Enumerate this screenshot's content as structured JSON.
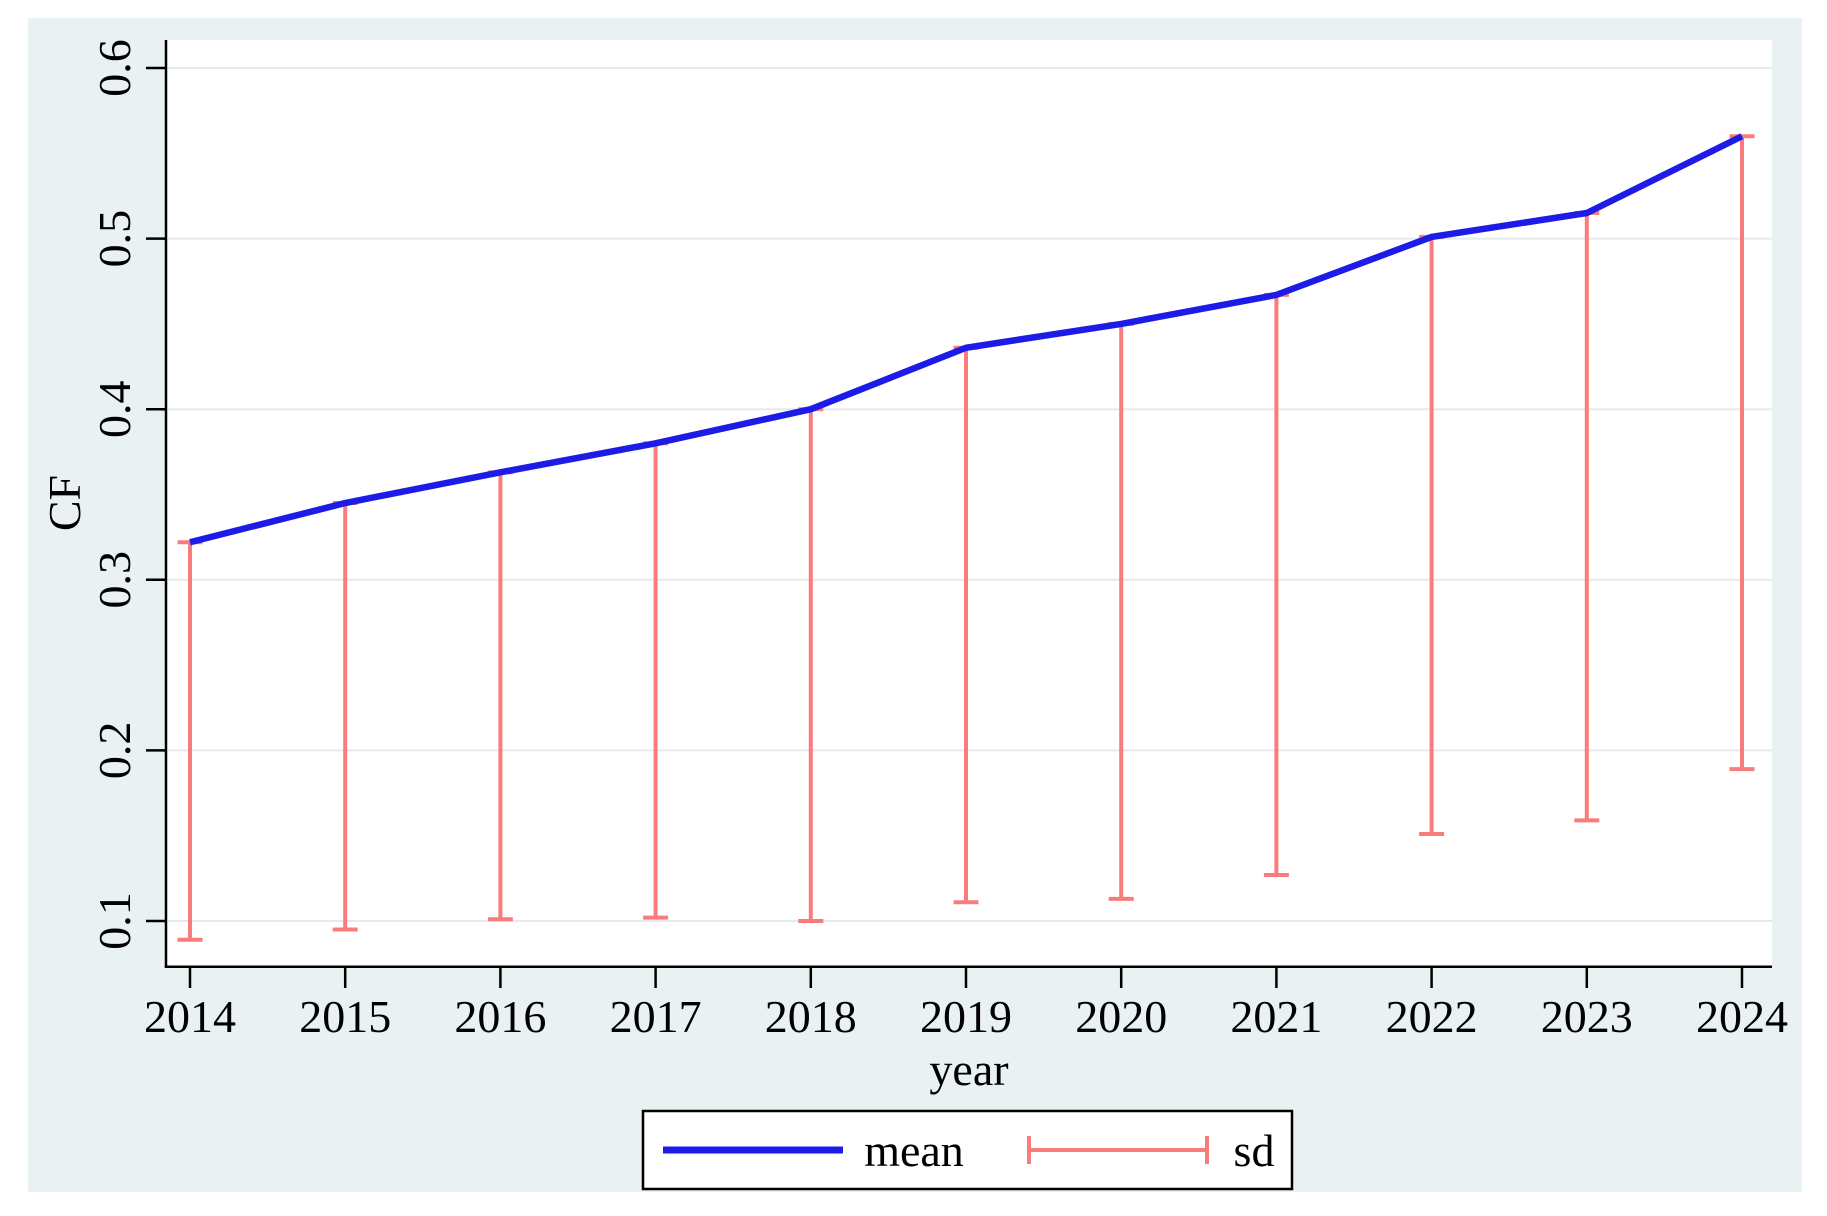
{
  "figure": {
    "description": "Stata-style line chart of mean CF by year with downward standard-deviation error bars"
  },
  "colors": {
    "page_background": "#ffffff",
    "graph_background": "#eaf1f3",
    "plot_background": "#ffffff",
    "gridline": "#e3ebee",
    "axis": "#000000",
    "text": "#000000",
    "mean_line": "#1c1ce6",
    "sd_bar": "#f97c7c",
    "legend_background": "#ffffff",
    "legend_border": "#000000"
  },
  "chart_data": {
    "type": "line",
    "title": "",
    "x_label": "year",
    "y_label": "CF",
    "x": [
      2014,
      2015,
      2016,
      2017,
      2018,
      2019,
      2020,
      2021,
      2022,
      2023,
      2024
    ],
    "x_tick_labels": [
      "2014",
      "2015",
      "2016",
      "2017",
      "2018",
      "2019",
      "2020",
      "2021",
      "2022",
      "2023",
      "2024"
    ],
    "y_ticks": [
      0.1,
      0.2,
      0.3,
      0.4,
      0.5,
      0.6
    ],
    "y_tick_labels": [
      "0.1",
      "0.2",
      "0.3",
      "0.4",
      "0.5",
      "0.6"
    ],
    "ylim": [
      0.072,
      0.618
    ],
    "grid": "horizontal",
    "series": [
      {
        "name": "mean",
        "type": "line",
        "color_key": "mean_line",
        "values": [
          0.322,
          0.345,
          0.363,
          0.38,
          0.4,
          0.436,
          0.45,
          0.467,
          0.501,
          0.515,
          0.56
        ]
      },
      {
        "name": "sd",
        "type": "error-bar-down",
        "color_key": "sd_bar",
        "upper": [
          0.322,
          0.345,
          0.363,
          0.38,
          0.4,
          0.436,
          0.45,
          0.467,
          0.501,
          0.515,
          0.56
        ],
        "lower": [
          0.089,
          0.095,
          0.101,
          0.102,
          0.1,
          0.111,
          0.113,
          0.127,
          0.151,
          0.159,
          0.189
        ]
      }
    ],
    "legend": {
      "position": "bottom-center",
      "entries": [
        {
          "label": "mean",
          "symbol": "line"
        },
        {
          "label": "sd",
          "symbol": "error-bar"
        }
      ]
    }
  }
}
